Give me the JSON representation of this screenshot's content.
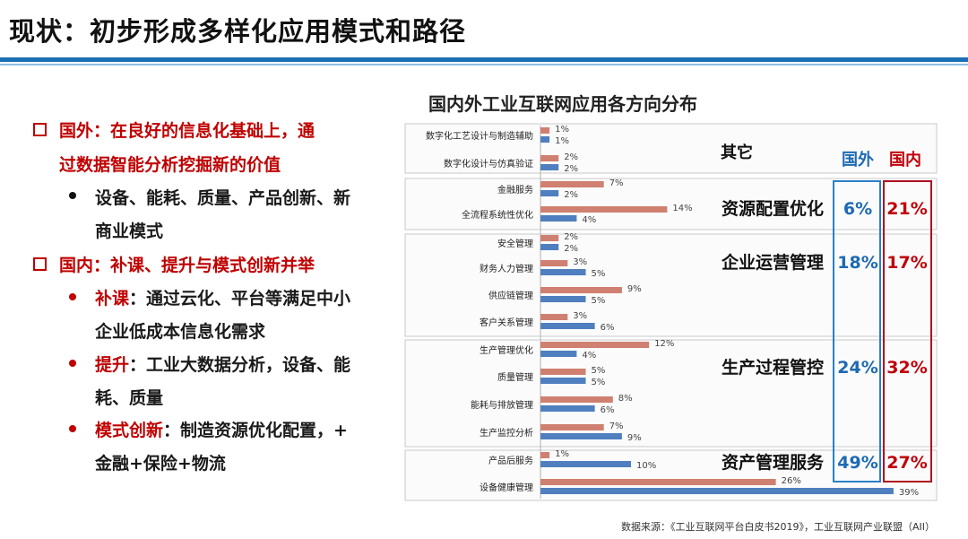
{
  "title": "现状：初步形成多样化应用模式和路径",
  "left_panel": {
    "abroad_line1": "国外：在良好的信息化基础上，通",
    "abroad_line2": "过数据智能分析挖掘新的价值",
    "abroad_bullet_line1": "设备、能耗、质量、产品创新、新",
    "abroad_bullet_line2": "商业模式",
    "domestic_line1": "国内：补课、提升与模式创新并举",
    "b1_key": "补课",
    "b1_rest": "：通过云化、平台等满足中小",
    "b1_line2": "企业低成本信息化需求",
    "b2_key": "提升",
    "b2_rest": "：工业大数据分析，设备、能",
    "b2_line2": "耗、质量",
    "b3_key": "模式创新",
    "b3_rest": "：制造资源优化配置，+",
    "b3_line2": "金融+保险+物流"
  },
  "chart_title": "国内外工业互联网应用各方向分布",
  "source": "数据来源：《工业互联网平台白皮书2019》，工业互联网产业联盟（AII）",
  "colors": {
    "domestic": "#d08070",
    "abroad": "#4f7fbf",
    "blue_text": "#1d6ab3",
    "red_text": "#c0000a"
  },
  "chart_data": {
    "type": "bar",
    "orientation": "horizontal",
    "categories": [
      "数字化工艺设计与制造辅助",
      "数字化设计与仿真验证",
      "金融服务",
      "全流程系统性优化",
      "安全管理",
      "财务人力管理",
      "供应链管理",
      "客户关系管理",
      "生产管理优化",
      "质量管理",
      "能耗与排放管理",
      "生产监控分析",
      "产品后服务",
      "设备健康管理"
    ],
    "series": [
      {
        "values": [
          1,
          2,
          7,
          14,
          2,
          3,
          9,
          3,
          12,
          5,
          8,
          7,
          1,
          26
        ],
        "labels": [
          "1%",
          "2%",
          "7%",
          "14%",
          "2%",
          "3%",
          "9%",
          "3%",
          "12%",
          "5%",
          "8%",
          "7%",
          "1%",
          "26%"
        ]
      },
      {
        "values": [
          1,
          2,
          2,
          4,
          2,
          5,
          5,
          6,
          4,
          5,
          6,
          9,
          10,
          39
        ],
        "labels": [
          "1%",
          "2%",
          "2%",
          "4%",
          "2%",
          "5%",
          "5%",
          "6%",
          "4%",
          "5%",
          "6%",
          "9%",
          "10%",
          "39%"
        ]
      }
    ],
    "column_headers": {
      "other": "其它",
      "abroad": "国外",
      "domestic": "国内"
    },
    "groups": [
      {
        "name": "资源配置优化",
        "abroad": "6%",
        "domestic": "21%"
      },
      {
        "name": "企业运营管理",
        "abroad": "18%",
        "domestic": "17%"
      },
      {
        "name": "生产过程管控",
        "abroad": "24%",
        "domestic": "32%"
      },
      {
        "name": "资产管理服务",
        "abroad": "49%",
        "domestic": "27%"
      }
    ]
  }
}
